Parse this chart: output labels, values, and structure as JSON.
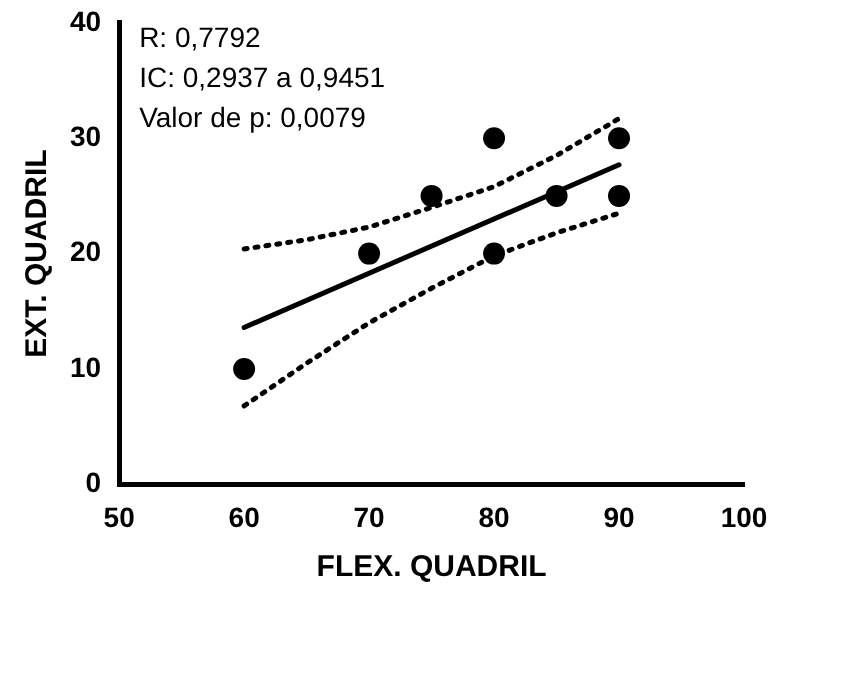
{
  "chart_data": {
    "type": "scatter",
    "xlabel": "FLEX. QUADRIL",
    "ylabel": "EXT. QUADRIL",
    "annotations": [
      "R: 0,7792",
      "IC: 0,2937 a 0,9451",
      "Valor de p: 0,0079"
    ],
    "xlim": [
      50,
      100
    ],
    "xticks": [
      50,
      60,
      70,
      80,
      90,
      100
    ],
    "ylim": [
      0,
      40
    ],
    "yticks": [
      0,
      10,
      20,
      30,
      40
    ],
    "grid": false,
    "legend": false,
    "series": [
      {
        "color": "#000000",
        "marker": "circle",
        "x": [
          60,
          70,
          75,
          80,
          80,
          85,
          90,
          90
        ],
        "values": [
          10,
          20,
          25,
          30,
          20,
          25,
          30,
          25
        ]
      },
      {
        "type": "line",
        "color": "#000000",
        "marker": "none",
        "line_style": "solid",
        "x": [
          60,
          90
        ],
        "values": [
          13.6,
          27.7
        ]
      },
      {
        "type": "line",
        "color": "#000000",
        "marker": "none",
        "line_style": "dotted",
        "x": [
          60,
          65,
          70,
          75,
          80,
          85,
          90
        ],
        "values": [
          20.4,
          21.2,
          22.3,
          24,
          25.8,
          28.5,
          31.7
        ]
      },
      {
        "type": "line",
        "color": "#000000",
        "marker": "none",
        "line_style": "dotted",
        "x": [
          60,
          65,
          70,
          75,
          80,
          85,
          90
        ],
        "values": [
          6.8,
          10.5,
          14,
          17,
          19.8,
          21.8,
          23.5
        ]
      }
    ]
  }
}
